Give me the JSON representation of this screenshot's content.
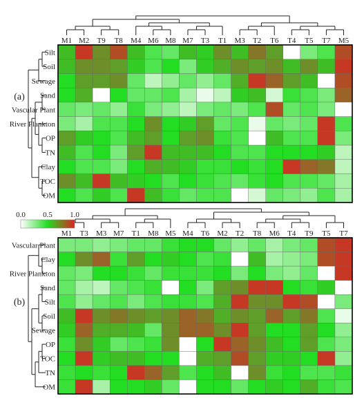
{
  "chart_data": [
    {
      "type": "heatmap",
      "panel_label": "(a)",
      "columns": [
        "M1",
        "M2",
        "T9",
        "T8",
        "M4",
        "M6",
        "M8",
        "M7",
        "T3",
        "T1",
        "M3",
        "T2",
        "T6",
        "T4",
        "T5",
        "T7",
        "M5"
      ],
      "rows": [
        "Silt",
        "Soil",
        "Sewage",
        "Sand",
        "Vascular Plant",
        "River Plankton",
        "OP",
        "TN",
        "Clay",
        "TOC",
        "OM"
      ],
      "values": [
        [
          0.6,
          0.95,
          0.75,
          0.9,
          0.6,
          0.4,
          0.35,
          0.6,
          0.55,
          0.75,
          0.6,
          0.8,
          0.7,
          0.0,
          0.3,
          0.4,
          0.9
        ],
        [
          0.6,
          0.75,
          0.75,
          0.7,
          0.55,
          0.4,
          0.5,
          0.3,
          0.55,
          0.65,
          0.75,
          0.7,
          0.75,
          0.6,
          0.75,
          0.6,
          0.95
        ],
        [
          0.5,
          0.7,
          0.7,
          0.75,
          0.35,
          0.15,
          0.25,
          0.35,
          0.25,
          0.35,
          0.65,
          0.95,
          0.85,
          0.7,
          0.6,
          0.0,
          0.9
        ],
        [
          0.5,
          0.65,
          0.0,
          0.5,
          0.35,
          0.35,
          0.4,
          0.2,
          0.05,
          0.15,
          0.55,
          0.6,
          0.1,
          0.45,
          0.4,
          0.3,
          0.85
        ],
        [
          0.35,
          0.3,
          0.35,
          0.25,
          0.45,
          0.3,
          0.25,
          0.15,
          0.3,
          0.35,
          0.3,
          0.4,
          0.9,
          0.35,
          0.4,
          0.3,
          0.0
        ],
        [
          0.3,
          0.2,
          0.4,
          0.4,
          0.5,
          0.75,
          0.5,
          0.55,
          0.7,
          0.35,
          0.4,
          0.05,
          0.35,
          0.3,
          0.35,
          0.95,
          0.4
        ],
        [
          0.7,
          0.55,
          0.5,
          0.4,
          0.6,
          0.7,
          0.5,
          0.7,
          0.75,
          0.45,
          0.4,
          0.0,
          0.6,
          0.4,
          0.4,
          0.95,
          0.3
        ],
        [
          0.6,
          0.4,
          0.5,
          0.3,
          0.7,
          0.95,
          0.6,
          0.6,
          0.6,
          0.5,
          0.4,
          0.4,
          0.5,
          0.5,
          0.5,
          0.55,
          0.15
        ],
        [
          0.5,
          0.4,
          0.4,
          0.3,
          0.5,
          0.65,
          0.6,
          0.55,
          0.45,
          0.45,
          0.5,
          0.45,
          0.5,
          0.95,
          0.85,
          0.8,
          0.15
        ],
        [
          0.75,
          0.6,
          0.95,
          0.6,
          0.55,
          0.5,
          0.4,
          0.5,
          0.45,
          0.4,
          0.35,
          0.45,
          0.5,
          0.4,
          0.4,
          0.35,
          0.2
        ],
        [
          0.5,
          0.4,
          0.55,
          0.4,
          0.95,
          0.6,
          0.45,
          0.35,
          0.4,
          0.4,
          0.0,
          0.1,
          0.35,
          0.3,
          0.25,
          0.4,
          0.2
        ]
      ]
    },
    {
      "type": "heatmap",
      "panel_label": "(b)",
      "columns": [
        "M1",
        "T3",
        "M3",
        "M7",
        "T1",
        "M8",
        "M5",
        "M4",
        "T6",
        "M2",
        "T2",
        "T8",
        "M6",
        "T4",
        "T9",
        "T5",
        "T7"
      ],
      "rows": [
        "Vascular Plant",
        "Clay",
        "River Plankton",
        "Sand",
        "Silt",
        "Soil",
        "Sewage",
        "OP",
        "TOC",
        "TN",
        "OM"
      ],
      "values": [
        [
          0.3,
          0.3,
          0.25,
          0.3,
          0.35,
          0.35,
          0.45,
          0.5,
          0.5,
          0.35,
          0.25,
          0.35,
          0.2,
          0.3,
          0.35,
          0.9,
          0.95
        ],
        [
          0.5,
          0.75,
          0.85,
          0.45,
          0.7,
          0.5,
          0.55,
          0.5,
          0.4,
          0.45,
          0.0,
          0.6,
          0.2,
          0.25,
          0.3,
          0.9,
          0.95
        ],
        [
          0.35,
          0.3,
          0.5,
          0.5,
          0.45,
          0.35,
          0.45,
          0.45,
          0.45,
          0.5,
          0.3,
          0.5,
          0.3,
          0.25,
          0.35,
          0.0,
          0.95
        ],
        [
          0.35,
          0.2,
          0.15,
          0.35,
          0.4,
          0.45,
          0.0,
          0.5,
          0.3,
          0.7,
          0.75,
          0.95,
          0.95,
          0.5,
          0.45,
          0.55,
          0.0
        ],
        [
          0.4,
          0.25,
          0.35,
          0.4,
          0.3,
          0.4,
          0.45,
          0.45,
          0.4,
          0.65,
          0.95,
          0.75,
          0.75,
          0.95,
          0.9,
          0.0,
          0.3
        ],
        [
          0.6,
          0.95,
          0.75,
          0.8,
          0.75,
          0.7,
          0.75,
          0.85,
          0.8,
          0.65,
          0.75,
          0.7,
          0.85,
          0.7,
          0.8,
          0.4,
          0.05
        ],
        [
          0.55,
          0.85,
          0.65,
          0.65,
          0.6,
          0.35,
          0.75,
          0.85,
          0.85,
          0.75,
          0.95,
          0.7,
          0.5,
          0.5,
          0.7,
          0.5,
          0.25
        ],
        [
          0.45,
          0.75,
          0.55,
          0.35,
          0.4,
          0.45,
          0.75,
          0.0,
          0.5,
          0.95,
          0.85,
          0.75,
          0.6,
          0.5,
          0.7,
          0.4,
          0.3
        ],
        [
          0.5,
          0.95,
          0.55,
          0.6,
          0.6,
          0.5,
          0.5,
          0.0,
          0.65,
          0.7,
          0.9,
          0.7,
          0.55,
          0.55,
          0.5,
          0.95,
          0.25
        ],
        [
          0.45,
          0.5,
          0.45,
          0.5,
          0.95,
          0.85,
          0.7,
          0.4,
          0.5,
          0.6,
          0.0,
          0.75,
          0.45,
          0.5,
          0.4,
          0.4,
          0.45
        ],
        [
          0.45,
          0.95,
          0.2,
          0.5,
          0.5,
          0.55,
          0.35,
          0.0,
          0.5,
          0.5,
          0.35,
          0.5,
          0.55,
          0.5,
          0.65,
          0.45,
          0.4
        ]
      ]
    }
  ],
  "legend": {
    "tick_labels": [
      "0.0",
      "0.5",
      "1.0"
    ],
    "colors": [
      "#ffffff",
      "#22dd22",
      "#dd2222"
    ],
    "range": [
      0,
      1
    ]
  },
  "colors": {
    "low": "#ffffff",
    "mid": "#22dd22",
    "mid_high": "#6e8e2a",
    "high": "#dd2222",
    "grid": "#666666",
    "border": "#000000",
    "dendrogram": "#222222"
  }
}
